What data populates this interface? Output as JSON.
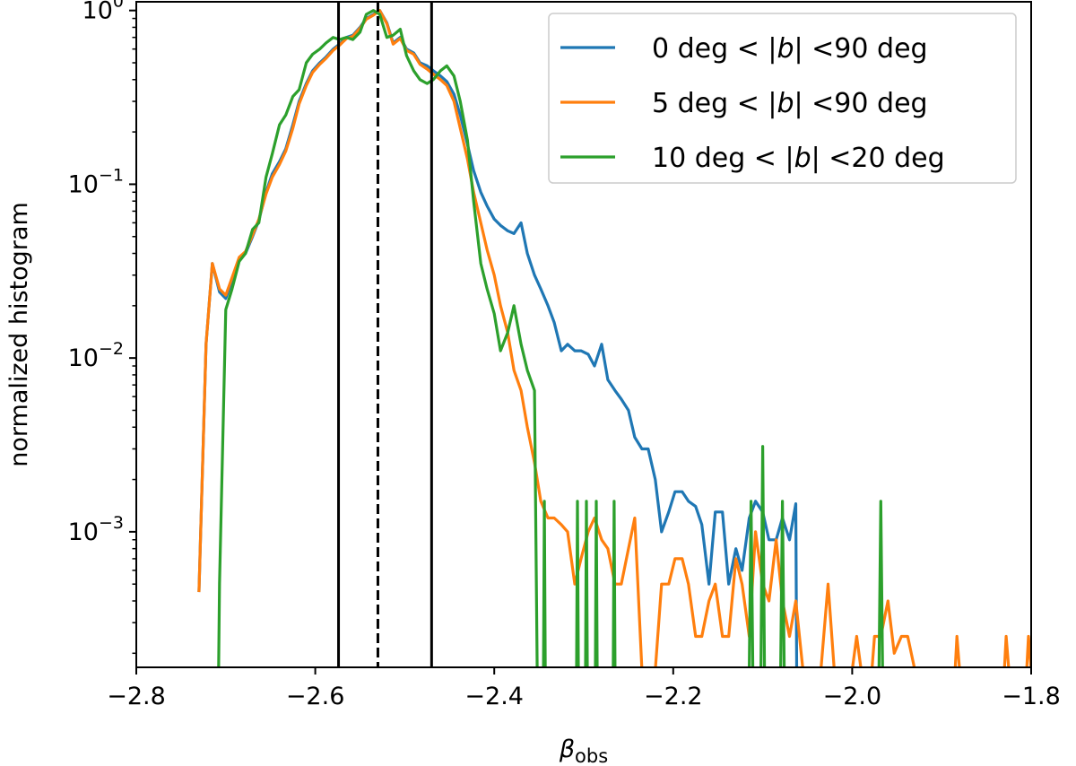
{
  "chart_data": {
    "type": "line",
    "title": "",
    "xlabel_base": "β",
    "xlabel_sub": "obs",
    "ylabel": "normalized histogram",
    "yscale": "log",
    "xlim": [
      -2.8,
      -1.8
    ],
    "ylim_log10": [
      -3.78,
      0.05
    ],
    "xticks": [
      -2.8,
      -2.6,
      -2.4,
      -2.2,
      -2.0,
      -1.8
    ],
    "xtick_labels": [
      "−2.8",
      "−2.6",
      "−2.4",
      "−2.2",
      "−2.0",
      "−1.8"
    ],
    "yticks": [
      {
        "base": "10",
        "exp": "0",
        "log": 0
      },
      {
        "base": "10",
        "exp": "−1",
        "log": -1
      },
      {
        "base": "10",
        "exp": "−2",
        "log": -2
      },
      {
        "base": "10",
        "exp": "−3",
        "log": -3
      }
    ],
    "vlines": [
      {
        "x": -2.574,
        "style": "solid",
        "color": "#000000"
      },
      {
        "x": -2.53,
        "style": "dashed",
        "color": "#000000"
      },
      {
        "x": -2.47,
        "style": "solid",
        "color": "#000000"
      }
    ],
    "legend": {
      "position": "top-right",
      "entries": [
        {
          "prefix": "0 deg < |",
          "var": "b",
          "suffix": "| <90 deg",
          "color": "#1f77b4"
        },
        {
          "prefix": "5 deg < |",
          "var": "b",
          "suffix": "| <90 deg",
          "color": "#ff7f0e"
        },
        {
          "prefix": "10 deg < |",
          "var": "b",
          "suffix": "| <20 deg",
          "color": "#2ca02c"
        }
      ]
    },
    "series": [
      {
        "name": "0 deg < |b| <90 deg",
        "color": "#1f77b4",
        "points": [
          [
            -2.73,
            0.00045
          ],
          [
            -2.722,
            0.012
          ],
          [
            -2.715,
            0.035
          ],
          [
            -2.707,
            0.024
          ],
          [
            -2.7,
            0.022
          ],
          [
            -2.693,
            0.028
          ],
          [
            -2.685,
            0.037
          ],
          [
            -2.678,
            0.04
          ],
          [
            -2.67,
            0.05
          ],
          [
            -2.663,
            0.062
          ],
          [
            -2.655,
            0.09
          ],
          [
            -2.648,
            0.115
          ],
          [
            -2.64,
            0.135
          ],
          [
            -2.633,
            0.16
          ],
          [
            -2.625,
            0.22
          ],
          [
            -2.618,
            0.3
          ],
          [
            -2.61,
            0.38
          ],
          [
            -2.603,
            0.45
          ],
          [
            -2.595,
            0.5
          ],
          [
            -2.588,
            0.54
          ],
          [
            -2.58,
            0.6
          ],
          [
            -2.573,
            0.64
          ],
          [
            -2.565,
            0.7
          ],
          [
            -2.558,
            0.72
          ],
          [
            -2.55,
            0.8
          ],
          [
            -2.543,
            0.9
          ],
          [
            -2.535,
            0.95
          ],
          [
            -2.528,
            1.0
          ],
          [
            -2.52,
            0.85
          ],
          [
            -2.513,
            0.65
          ],
          [
            -2.505,
            0.7
          ],
          [
            -2.498,
            0.6
          ],
          [
            -2.49,
            0.57
          ],
          [
            -2.483,
            0.5
          ],
          [
            -2.475,
            0.48
          ],
          [
            -2.468,
            0.45
          ],
          [
            -2.46,
            0.42
          ],
          [
            -2.453,
            0.39
          ],
          [
            -2.445,
            0.33
          ],
          [
            -2.438,
            0.25
          ],
          [
            -2.43,
            0.17
          ],
          [
            -2.423,
            0.12
          ],
          [
            -2.415,
            0.09
          ],
          [
            -2.408,
            0.075
          ],
          [
            -2.4,
            0.063
          ],
          [
            -2.393,
            0.058
          ],
          [
            -2.385,
            0.054
          ],
          [
            -2.378,
            0.052
          ],
          [
            -2.37,
            0.06
          ],
          [
            -2.363,
            0.04
          ],
          [
            -2.355,
            0.03
          ],
          [
            -2.348,
            0.025
          ],
          [
            -2.34,
            0.02
          ],
          [
            -2.333,
            0.016
          ],
          [
            -2.325,
            0.011
          ],
          [
            -2.318,
            0.012
          ],
          [
            -2.31,
            0.011
          ],
          [
            -2.303,
            0.011
          ],
          [
            -2.295,
            0.0105
          ],
          [
            -2.288,
            0.009
          ],
          [
            -2.28,
            0.012
          ],
          [
            -2.273,
            0.0075
          ],
          [
            -2.265,
            0.0065
          ],
          [
            -2.258,
            0.0058
          ],
          [
            -2.25,
            0.005
          ],
          [
            -2.243,
            0.0035
          ],
          [
            -2.235,
            0.003
          ],
          [
            -2.228,
            0.003
          ],
          [
            -2.22,
            0.002
          ],
          [
            -2.213,
            0.001
          ],
          [
            -2.205,
            0.0013
          ],
          [
            -2.198,
            0.0017
          ],
          [
            -2.19,
            0.0017
          ],
          [
            -2.183,
            0.0015
          ],
          [
            -2.175,
            0.0014
          ],
          [
            -2.168,
            0.0011
          ],
          [
            -2.16,
            0.0005
          ],
          [
            -2.153,
            0.0013
          ],
          [
            -2.145,
            0.0013
          ],
          [
            -2.138,
            0.0005
          ],
          [
            -2.13,
            0.0008
          ],
          [
            -2.123,
            0.0006
          ],
          [
            -2.115,
            0.0012
          ],
          [
            -2.108,
            0.0015
          ],
          [
            -2.1,
            0.0013
          ],
          [
            -2.093,
            0.0009
          ],
          [
            -2.085,
            0.0009
          ],
          [
            -2.078,
            0.0012
          ],
          [
            -2.07,
            0.0009
          ],
          [
            -2.063,
            0.00145
          ],
          [
            -2.062,
            0.00016
          ]
        ]
      },
      {
        "name": "5 deg < |b| <90 deg",
        "color": "#ff7f0e",
        "points": [
          [
            -2.73,
            0.00045
          ],
          [
            -2.722,
            0.012
          ],
          [
            -2.715,
            0.035
          ],
          [
            -2.707,
            0.025
          ],
          [
            -2.7,
            0.023
          ],
          [
            -2.693,
            0.029
          ],
          [
            -2.685,
            0.038
          ],
          [
            -2.678,
            0.041
          ],
          [
            -2.67,
            0.051
          ],
          [
            -2.663,
            0.063
          ],
          [
            -2.655,
            0.088
          ],
          [
            -2.648,
            0.11
          ],
          [
            -2.64,
            0.13
          ],
          [
            -2.633,
            0.155
          ],
          [
            -2.625,
            0.21
          ],
          [
            -2.618,
            0.29
          ],
          [
            -2.61,
            0.37
          ],
          [
            -2.603,
            0.44
          ],
          [
            -2.595,
            0.49
          ],
          [
            -2.588,
            0.53
          ],
          [
            -2.58,
            0.59
          ],
          [
            -2.573,
            0.63
          ],
          [
            -2.565,
            0.69
          ],
          [
            -2.558,
            0.71
          ],
          [
            -2.55,
            0.79
          ],
          [
            -2.543,
            0.89
          ],
          [
            -2.535,
            0.94
          ],
          [
            -2.528,
            1.0
          ],
          [
            -2.52,
            0.84
          ],
          [
            -2.513,
            0.64
          ],
          [
            -2.505,
            0.69
          ],
          [
            -2.498,
            0.59
          ],
          [
            -2.49,
            0.56
          ],
          [
            -2.483,
            0.49
          ],
          [
            -2.475,
            0.46
          ],
          [
            -2.468,
            0.43
          ],
          [
            -2.46,
            0.4
          ],
          [
            -2.453,
            0.37
          ],
          [
            -2.445,
            0.3
          ],
          [
            -2.438,
            0.21
          ],
          [
            -2.43,
            0.14
          ],
          [
            -2.423,
            0.09
          ],
          [
            -2.415,
            0.06
          ],
          [
            -2.408,
            0.042
          ],
          [
            -2.4,
            0.03
          ],
          [
            -2.393,
            0.02
          ],
          [
            -2.385,
            0.014
          ],
          [
            -2.378,
            0.0085
          ],
          [
            -2.37,
            0.0065
          ],
          [
            -2.363,
            0.004
          ],
          [
            -2.355,
            0.0025
          ],
          [
            -2.348,
            0.0015
          ],
          [
            -2.34,
            0.0012
          ],
          [
            -2.333,
            0.0012
          ],
          [
            -2.325,
            0.0011
          ],
          [
            -2.318,
            0.001
          ],
          [
            -2.31,
            0.0005
          ],
          [
            -2.303,
            0.0007
          ],
          [
            -2.295,
            0.001
          ],
          [
            -2.288,
            0.0012
          ],
          [
            -2.28,
            0.0009
          ],
          [
            -2.273,
            0.0008
          ],
          [
            -2.265,
            0.0005
          ],
          [
            -2.258,
            0.0005
          ],
          [
            -2.25,
            0.0008
          ],
          [
            -2.243,
            0.0012
          ],
          [
            -2.235,
            0.00016
          ],
          [
            -2.22,
            0.00016
          ],
          [
            -2.213,
            0.0005
          ],
          [
            -2.205,
            0.0005
          ],
          [
            -2.198,
            0.0007
          ],
          [
            -2.19,
            0.0007
          ],
          [
            -2.183,
            0.0005
          ],
          [
            -2.175,
            0.00025
          ],
          [
            -2.168,
            0.00025
          ],
          [
            -2.16,
            0.0004
          ],
          [
            -2.153,
            0.0005
          ],
          [
            -2.145,
            0.00025
          ],
          [
            -2.138,
            0.00025
          ],
          [
            -2.13,
            0.0007
          ],
          [
            -2.123,
            0.0005
          ],
          [
            -2.115,
            0.00025
          ],
          [
            -2.108,
            0.001
          ],
          [
            -2.1,
            0.0005
          ],
          [
            -2.093,
            0.0004
          ],
          [
            -2.085,
            0.0009
          ],
          [
            -2.078,
            0.0004
          ],
          [
            -2.07,
            0.00025
          ],
          [
            -2.063,
            0.0004
          ],
          [
            -2.055,
            0.00016
          ],
          [
            -2.035,
            0.00016
          ],
          [
            -2.027,
            0.0005
          ],
          [
            -2.02,
            0.00016
          ],
          [
            -2.0,
            0.00016
          ],
          [
            -1.995,
            0.00025
          ],
          [
            -1.99,
            0.00016
          ],
          [
            -1.978,
            0.00016
          ],
          [
            -1.975,
            0.00025
          ],
          [
            -1.968,
            0.00025
          ],
          [
            -1.96,
            0.0004
          ],
          [
            -1.953,
            0.0002
          ],
          [
            -1.945,
            0.00025
          ],
          [
            -1.938,
            0.00025
          ],
          [
            -1.93,
            0.00016
          ],
          [
            -1.885,
            0.00016
          ],
          [
            -1.883,
            0.00025
          ],
          [
            -1.88,
            0.00016
          ],
          [
            -1.83,
            0.00016
          ],
          [
            -1.828,
            0.00025
          ],
          [
            -1.825,
            0.00016
          ],
          [
            -1.805,
            0.00016
          ],
          [
            -1.803,
            0.00025
          ],
          [
            -1.8,
            0.00016
          ]
        ]
      },
      {
        "name": "10 deg < |b| <20 deg",
        "color": "#2ca02c",
        "points": [
          [
            -2.708,
            0.00016
          ],
          [
            -2.707,
            0.0005
          ],
          [
            -2.7,
            0.019
          ],
          [
            -2.693,
            0.025
          ],
          [
            -2.685,
            0.036
          ],
          [
            -2.678,
            0.04
          ],
          [
            -2.67,
            0.055
          ],
          [
            -2.663,
            0.06
          ],
          [
            -2.655,
            0.11
          ],
          [
            -2.648,
            0.15
          ],
          [
            -2.64,
            0.22
          ],
          [
            -2.633,
            0.25
          ],
          [
            -2.625,
            0.32
          ],
          [
            -2.618,
            0.35
          ],
          [
            -2.61,
            0.5
          ],
          [
            -2.603,
            0.56
          ],
          [
            -2.595,
            0.6
          ],
          [
            -2.588,
            0.65
          ],
          [
            -2.58,
            0.7
          ],
          [
            -2.573,
            0.68
          ],
          [
            -2.565,
            0.7
          ],
          [
            -2.558,
            0.68
          ],
          [
            -2.55,
            0.75
          ],
          [
            -2.543,
            0.95
          ],
          [
            -2.535,
            1.0
          ],
          [
            -2.528,
            0.95
          ],
          [
            -2.52,
            0.7
          ],
          [
            -2.513,
            0.72
          ],
          [
            -2.505,
            0.78
          ],
          [
            -2.498,
            0.55
          ],
          [
            -2.49,
            0.45
          ],
          [
            -2.483,
            0.4
          ],
          [
            -2.475,
            0.38
          ],
          [
            -2.468,
            0.4
          ],
          [
            -2.46,
            0.45
          ],
          [
            -2.453,
            0.48
          ],
          [
            -2.445,
            0.42
          ],
          [
            -2.438,
            0.3
          ],
          [
            -2.43,
            0.18
          ],
          [
            -2.423,
            0.08
          ],
          [
            -2.415,
            0.035
          ],
          [
            -2.408,
            0.025
          ],
          [
            -2.4,
            0.018
          ],
          [
            -2.393,
            0.011
          ],
          [
            -2.385,
            0.014
          ],
          [
            -2.378,
            0.02
          ],
          [
            -2.37,
            0.012
          ],
          [
            -2.363,
            0.0085
          ],
          [
            -2.355,
            0.0065
          ],
          [
            -2.352,
            0.00016
          ],
          [
            -2.345,
            0.00016
          ],
          [
            -2.344,
            0.0015
          ],
          [
            -2.343,
            0.00016
          ],
          [
            -2.308,
            0.00016
          ],
          [
            -2.307,
            0.0015
          ],
          [
            -2.306,
            0.00016
          ],
          [
            -2.298,
            0.00016
          ],
          [
            -2.297,
            0.0015
          ],
          [
            -2.296,
            0.00016
          ],
          [
            -2.287,
            0.00016
          ],
          [
            -2.286,
            0.0015
          ],
          [
            -2.285,
            0.00016
          ],
          [
            -2.267,
            0.00016
          ],
          [
            -2.266,
            0.0015
          ],
          [
            -2.265,
            0.00016
          ],
          [
            -2.115,
            0.00016
          ],
          [
            -2.113,
            0.0015
          ],
          [
            -2.111,
            0.00016
          ],
          [
            -2.102,
            0.00016
          ],
          [
            -2.1,
            0.0031
          ],
          [
            -2.098,
            0.00016
          ],
          [
            -2.08,
            0.00016
          ],
          [
            -2.078,
            0.0015
          ],
          [
            -2.076,
            0.00016
          ],
          [
            -1.97,
            0.00016
          ],
          [
            -1.968,
            0.0015
          ],
          [
            -1.966,
            0.00016
          ]
        ]
      }
    ]
  }
}
